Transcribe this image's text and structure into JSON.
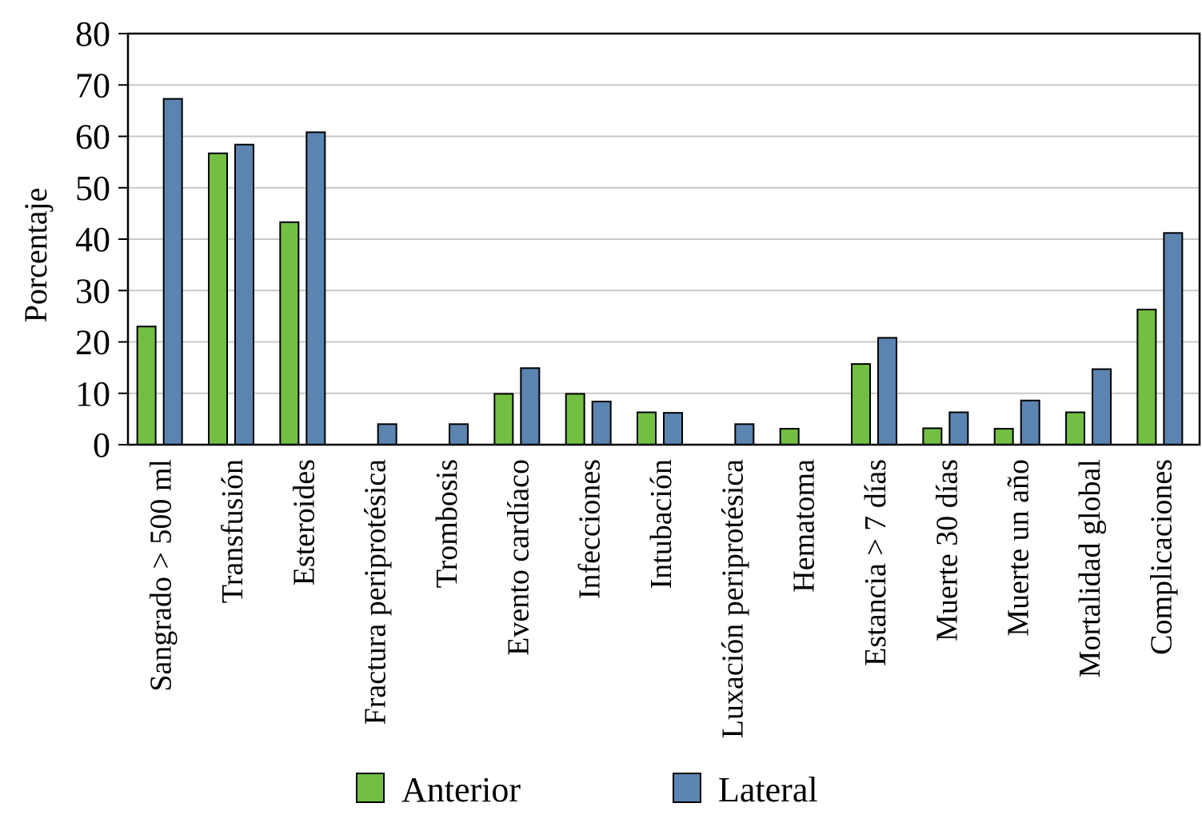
{
  "chart_data": {
    "type": "bar",
    "ylabel": "Porcentaje",
    "ylim": [
      0,
      80
    ],
    "yticks": [
      0,
      10,
      20,
      30,
      40,
      50,
      60,
      70,
      80
    ],
    "grid": true,
    "legend_position": "bottom",
    "categories": [
      "Sangrado > 500 ml",
      "Transfusión",
      "Esteroides",
      "Fractura periprotésica",
      "Trombosis",
      "Evento cardíaco",
      "Infecciones",
      "Intubación",
      "Luxación periprotésica",
      "Hematoma",
      "Estancia > 7 días",
      "Muerte 30 días",
      "Muerte un año",
      "Mortalidad global",
      "Complicaciones"
    ],
    "series": [
      {
        "name": "Anterior",
        "color": "#72bf44",
        "values": [
          23,
          56.7,
          43.3,
          0,
          0,
          9.9,
          9.9,
          6.3,
          0,
          3.1,
          15.7,
          3.2,
          3.1,
          6.3,
          26.3
        ]
      },
      {
        "name": "Lateral",
        "color": "#5b84b1",
        "values": [
          67.3,
          58.4,
          60.8,
          4.0,
          4.0,
          14.9,
          8.4,
          6.2,
          4.0,
          0,
          20.8,
          6.3,
          8.6,
          14.7,
          41.2
        ]
      }
    ]
  }
}
